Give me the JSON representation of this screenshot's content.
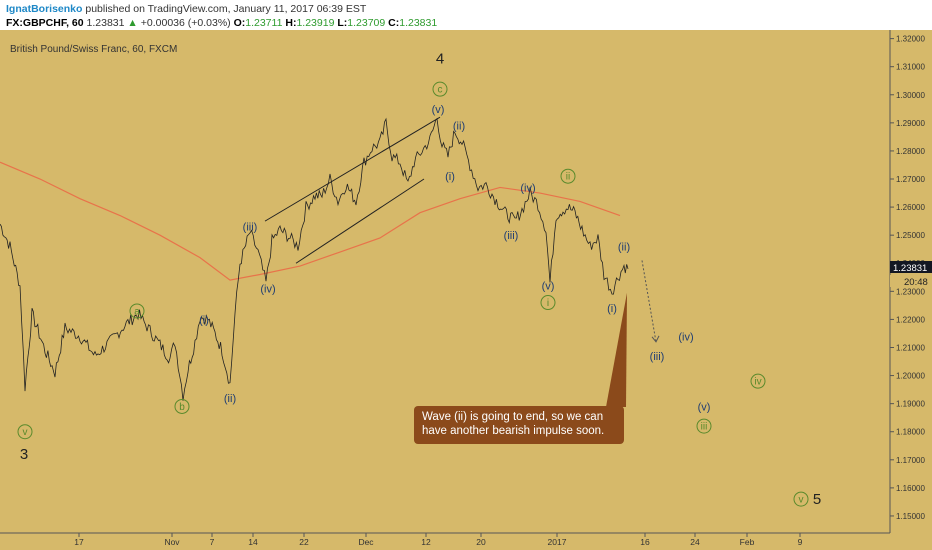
{
  "header": {
    "author": "IgnatBorisenko",
    "published_text": "published on TradingView.com, January 11, 2017 06:39 EST",
    "symbol": "FX:GBPCHF, 60",
    "last": "1.23831",
    "change_arrow": "▲",
    "change": "+0.00036 (+0.03%)",
    "o_label": "O:",
    "o_value": "1.23711",
    "h_label": "H:",
    "h_value": "1.23919",
    "l_label": "L:",
    "l_value": "1.23709",
    "c_label": "C:",
    "c_value": "1.23831"
  },
  "colors": {
    "background": "#d6b96a",
    "price_line": "#222222",
    "moving_average": "#e8734a",
    "wave_label": "#1f3d73",
    "wave_circle": "#5a8a2c",
    "callout": "#8b4a1b"
  },
  "chart_data": {
    "type": "line",
    "title": "British Pound/Swiss Franc, 60, FXCM",
    "ylim": [
      1.145,
      1.322
    ],
    "y_ticks": [
      "1.32000",
      "1.31000",
      "1.30000",
      "1.29000",
      "1.28000",
      "1.27000",
      "1.26000",
      "1.25000",
      "1.24000",
      "1.23000",
      "1.22000",
      "1.21000",
      "1.20000",
      "1.19000",
      "1.18000",
      "1.17000",
      "1.16000",
      "1.15000"
    ],
    "x_ticks": [
      "17",
      "Nov",
      "7",
      "14",
      "22",
      "Dec",
      "12",
      "20",
      "2017",
      "16",
      "24",
      "Feb",
      "9"
    ],
    "last_price": "1.23831",
    "countdown": "20:48",
    "price_path": [
      [
        0,
        1.254
      ],
      [
        10,
        1.246
      ],
      [
        20,
        1.232
      ],
      [
        25,
        1.196
      ],
      [
        32,
        1.222
      ],
      [
        45,
        1.209
      ],
      [
        55,
        1.201
      ],
      [
        65,
        1.217
      ],
      [
        80,
        1.214
      ],
      [
        95,
        1.207
      ],
      [
        110,
        1.212
      ],
      [
        125,
        1.218
      ],
      [
        138,
        1.222
      ],
      [
        150,
        1.216
      ],
      [
        160,
        1.211
      ],
      [
        170,
        1.206
      ],
      [
        175,
        1.212
      ],
      [
        183,
        1.193
      ],
      [
        188,
        1.202
      ],
      [
        195,
        1.212
      ],
      [
        200,
        1.221
      ],
      [
        208,
        1.22
      ],
      [
        215,
        1.215
      ],
      [
        222,
        1.209
      ],
      [
        230,
        1.197
      ],
      [
        235,
        1.222
      ],
      [
        240,
        1.24
      ],
      [
        250,
        1.251
      ],
      [
        258,
        1.244
      ],
      [
        266,
        1.233
      ],
      [
        272,
        1.248
      ],
      [
        280,
        1.252
      ],
      [
        290,
        1.249
      ],
      [
        298,
        1.246
      ],
      [
        306,
        1.26
      ],
      [
        315,
        1.264
      ],
      [
        322,
        1.264
      ],
      [
        330,
        1.27
      ],
      [
        338,
        1.262
      ],
      [
        346,
        1.268
      ],
      [
        356,
        1.262
      ],
      [
        364,
        1.276
      ],
      [
        372,
        1.281
      ],
      [
        380,
        1.283
      ],
      [
        386,
        1.29
      ],
      [
        392,
        1.278
      ],
      [
        400,
        1.276
      ],
      [
        408,
        1.268
      ],
      [
        414,
        1.276
      ],
      [
        422,
        1.28
      ],
      [
        430,
        1.284
      ],
      [
        437,
        1.292
      ],
      [
        442,
        1.282
      ],
      [
        448,
        1.278
      ],
      [
        455,
        1.287
      ],
      [
        462,
        1.283
      ],
      [
        470,
        1.275
      ],
      [
        478,
        1.267
      ],
      [
        486,
        1.268
      ],
      [
        495,
        1.263
      ],
      [
        505,
        1.258
      ],
      [
        515,
        1.255
      ],
      [
        522,
        1.259
      ],
      [
        530,
        1.265
      ],
      [
        538,
        1.261
      ],
      [
        546,
        1.252
      ],
      [
        550,
        1.233
      ],
      [
        556,
        1.257
      ],
      [
        563,
        1.259
      ],
      [
        568,
        1.26
      ],
      [
        575,
        1.258
      ],
      [
        582,
        1.252
      ],
      [
        590,
        1.246
      ],
      [
        598,
        1.249
      ],
      [
        604,
        1.236
      ],
      [
        612,
        1.23
      ],
      [
        618,
        1.235
      ],
      [
        624,
        1.239
      ],
      [
        628,
        1.238
      ]
    ],
    "ma_path": [
      [
        0,
        1.276
      ],
      [
        40,
        1.27
      ],
      [
        80,
        1.263
      ],
      [
        120,
        1.257
      ],
      [
        160,
        1.25
      ],
      [
        200,
        1.242
      ],
      [
        230,
        1.234
      ],
      [
        260,
        1.236
      ],
      [
        300,
        1.239
      ],
      [
        340,
        1.244
      ],
      [
        380,
        1.249
      ],
      [
        420,
        1.258
      ],
      [
        460,
        1.263
      ],
      [
        500,
        1.267
      ],
      [
        540,
        1.265
      ],
      [
        580,
        1.262
      ],
      [
        620,
        1.257
      ]
    ],
    "channel_lines": [
      [
        [
          265,
          1.255
        ],
        [
          440,
          1.292
        ]
      ],
      [
        [
          296,
          1.24
        ],
        [
          424,
          1.27
        ]
      ]
    ],
    "projection": [
      [
        642,
        1.241
      ],
      [
        656,
        1.212
      ]
    ],
    "wave_labels": [
      {
        "text": "3",
        "x": 24,
        "y": 1.172,
        "style": "big"
      },
      {
        "text": "v",
        "x": 25,
        "y": 1.18,
        "style": "circle"
      },
      {
        "text": "a",
        "x": 137,
        "y": 1.223,
        "style": "circle"
      },
      {
        "text": "b",
        "x": 182,
        "y": 1.189,
        "style": "circle"
      },
      {
        "text": "(i)",
        "x": 204,
        "y": 1.22,
        "style": "plain"
      },
      {
        "text": "(ii)",
        "x": 230,
        "y": 1.192,
        "style": "plain"
      },
      {
        "text": "(iii)",
        "x": 250,
        "y": 1.253,
        "style": "plain"
      },
      {
        "text": "(iv)",
        "x": 268,
        "y": 1.231,
        "style": "plain"
      },
      {
        "text": "4",
        "x": 440,
        "y": 1.313,
        "style": "big"
      },
      {
        "text": "c",
        "x": 440,
        "y": 1.302,
        "style": "circle"
      },
      {
        "text": "(v)",
        "x": 438,
        "y": 1.295,
        "style": "plain"
      },
      {
        "text": "(ii)",
        "x": 459,
        "y": 1.289,
        "style": "plain"
      },
      {
        "text": "(i)",
        "x": 450,
        "y": 1.271,
        "style": "plain"
      },
      {
        "text": "(iv)",
        "x": 528,
        "y": 1.267,
        "style": "plain"
      },
      {
        "text": "(iii)",
        "x": 511,
        "y": 1.25,
        "style": "plain"
      },
      {
        "text": "ii",
        "x": 568,
        "y": 1.271,
        "style": "circle"
      },
      {
        "text": "(v)",
        "x": 548,
        "y": 1.232,
        "style": "plain"
      },
      {
        "text": "i",
        "x": 548,
        "y": 1.226,
        "style": "circle"
      },
      {
        "text": "(ii)",
        "x": 624,
        "y": 1.246,
        "style": "plain"
      },
      {
        "text": "(i)",
        "x": 612,
        "y": 1.224,
        "style": "plain"
      },
      {
        "text": "(iv)",
        "x": 686,
        "y": 1.214,
        "style": "plain"
      },
      {
        "text": "(iii)",
        "x": 657,
        "y": 1.207,
        "style": "plain"
      },
      {
        "text": "iv",
        "x": 758,
        "y": 1.198,
        "style": "circle"
      },
      {
        "text": "(v)",
        "x": 704,
        "y": 1.189,
        "style": "plain"
      },
      {
        "text": "iii",
        "x": 704,
        "y": 1.182,
        "style": "circle"
      },
      {
        "text": "v",
        "x": 801,
        "y": 1.156,
        "style": "circle"
      },
      {
        "text": "5",
        "x": 817,
        "y": 1.156,
        "style": "big"
      }
    ],
    "annotation": "Wave (ii) is going to end, so we can have another bearish impulse soon."
  }
}
